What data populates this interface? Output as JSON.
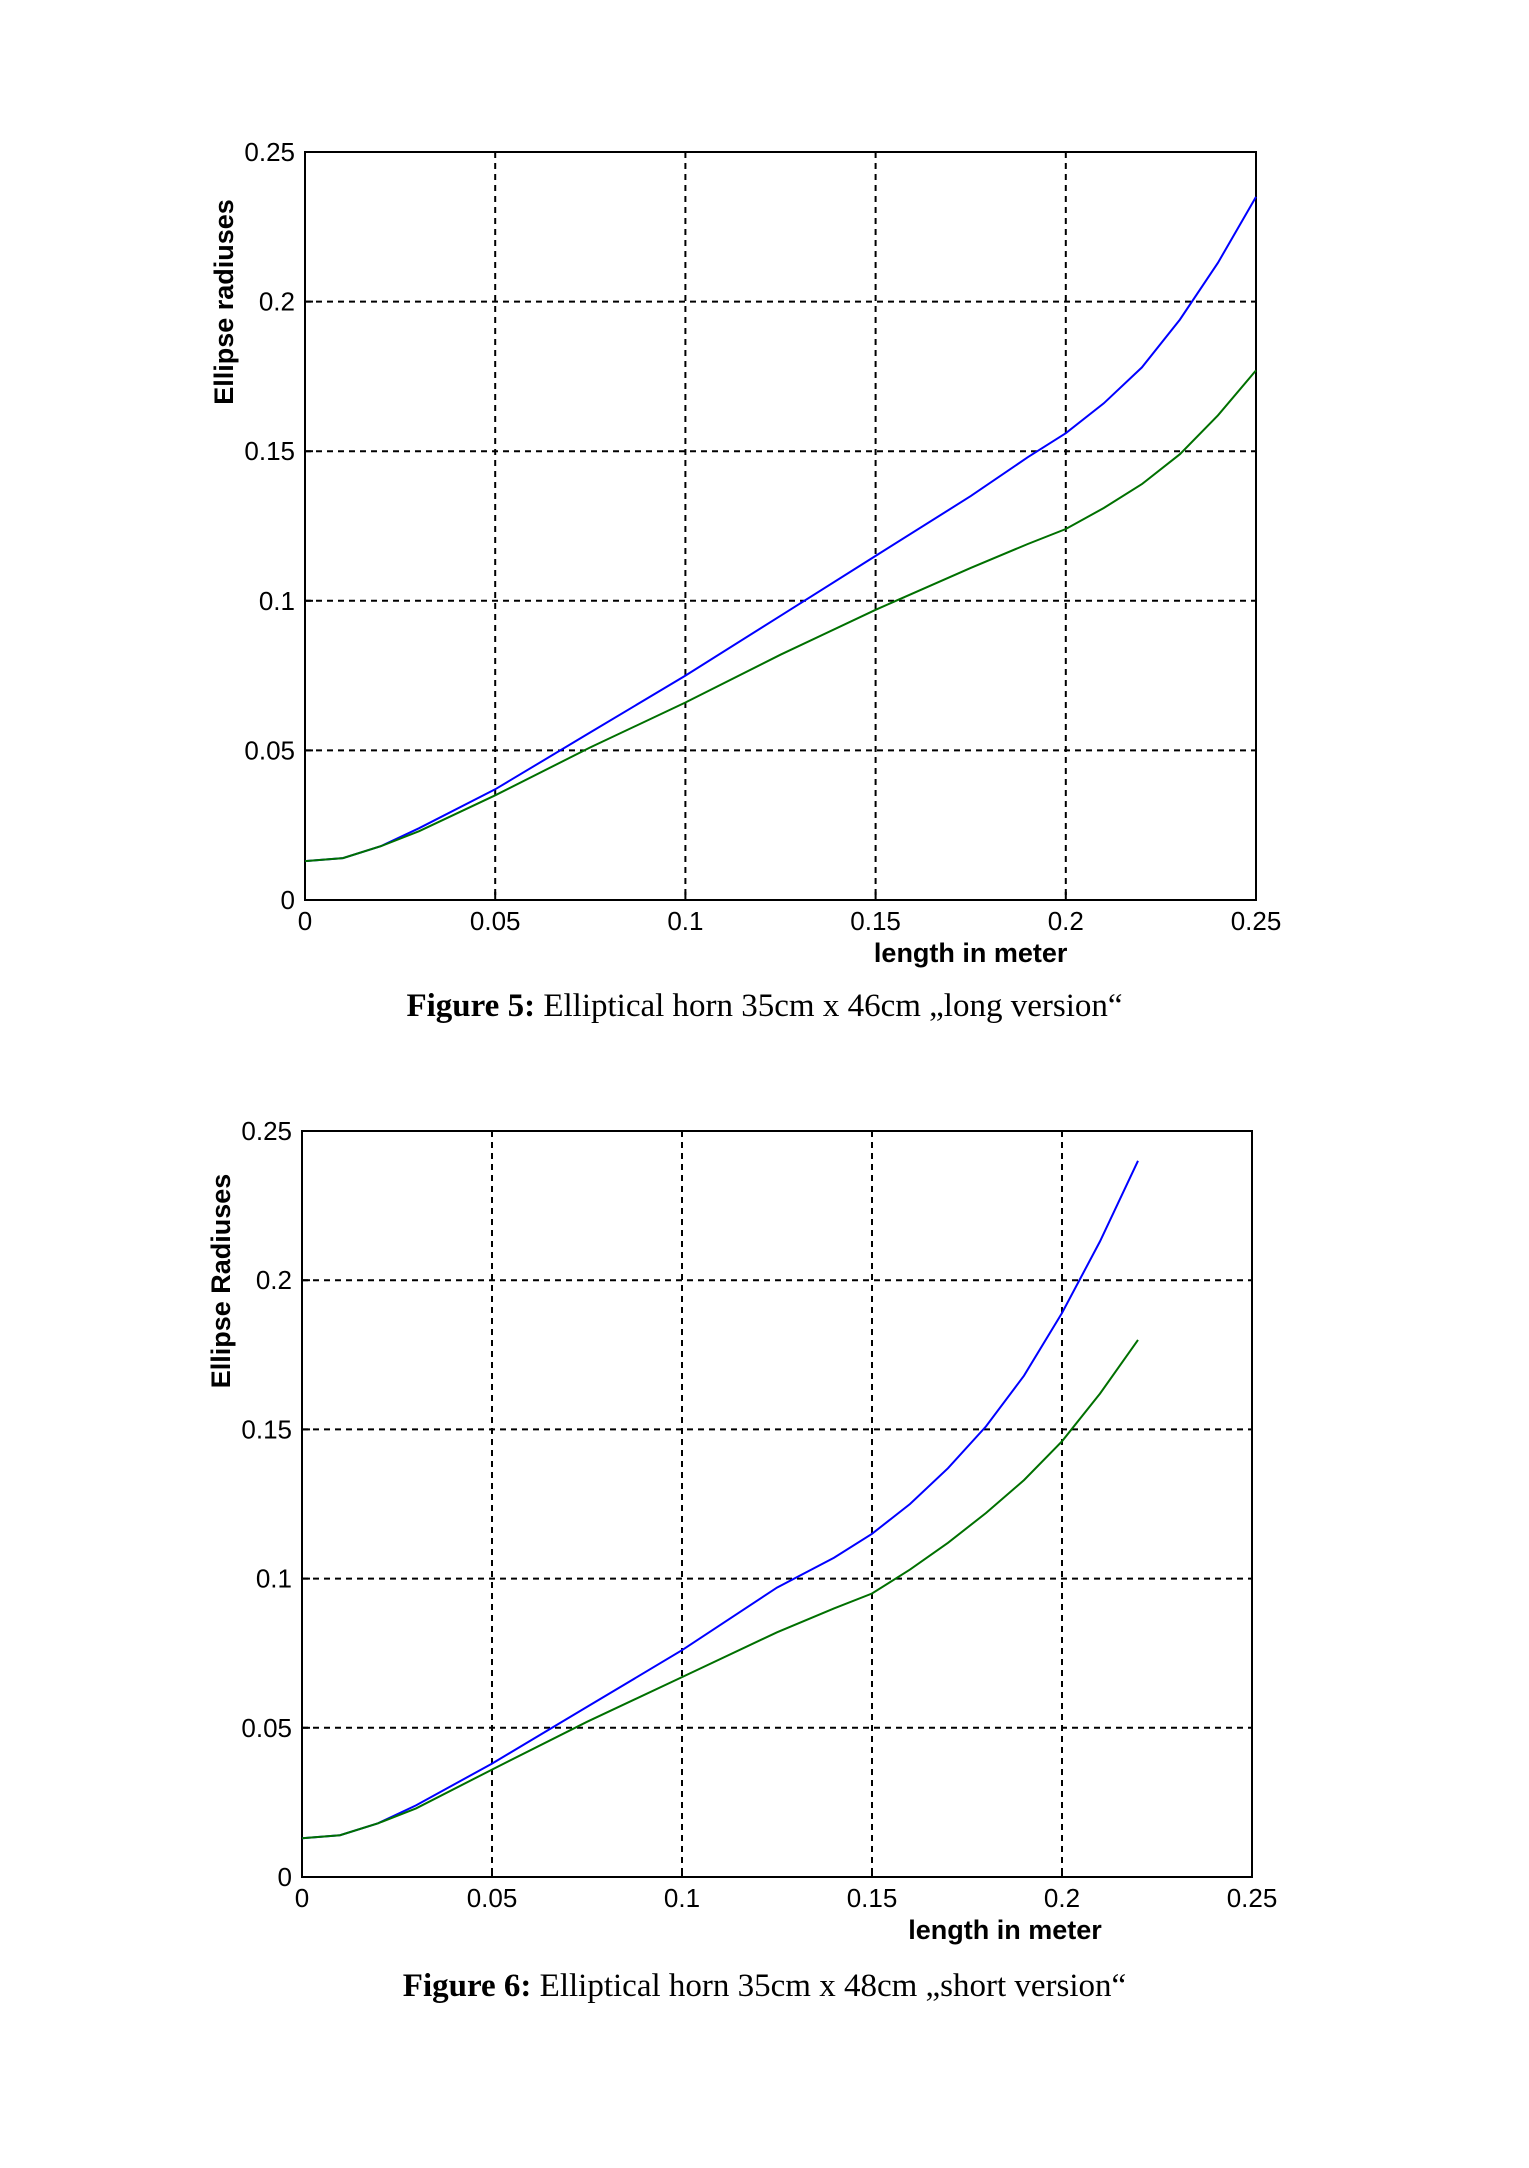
{
  "figures": [
    {
      "caption_label": "Figure 5:",
      "caption_text": " Elliptical horn 35cm x 46cm „long version“",
      "chart_data": {
        "type": "line",
        "xlabel": "length in meter",
        "ylabel": "Ellipse radiuses",
        "xlim": [
          0,
          0.25
        ],
        "ylim": [
          0,
          0.25
        ],
        "x_ticks": [
          "0",
          "0.05",
          "0.1",
          "0.15",
          "0.2",
          "0.25"
        ],
        "y_ticks": [
          "0",
          "0.05",
          "0.1",
          "0.15",
          "0.2",
          "0.25"
        ],
        "grid": true,
        "series": [
          {
            "color": "#0000ff",
            "x": [
              0,
              0.01,
              0.02,
              0.03,
              0.05,
              0.075,
              0.1,
              0.125,
              0.15,
              0.175,
              0.19,
              0.2,
              0.21,
              0.22,
              0.23,
              0.24,
              0.25
            ],
            "y": [
              0.013,
              0.014,
              0.018,
              0.024,
              0.037,
              0.056,
              0.075,
              0.095,
              0.115,
              0.135,
              0.148,
              0.156,
              0.166,
              0.178,
              0.194,
              0.213,
              0.235
            ]
          },
          {
            "color": "#007000",
            "x": [
              0,
              0.01,
              0.02,
              0.03,
              0.05,
              0.075,
              0.1,
              0.125,
              0.15,
              0.175,
              0.19,
              0.2,
              0.21,
              0.22,
              0.23,
              0.24,
              0.25
            ],
            "y": [
              0.013,
              0.014,
              0.018,
              0.023,
              0.035,
              0.051,
              0.066,
              0.082,
              0.097,
              0.111,
              0.119,
              0.124,
              0.131,
              0.139,
              0.149,
              0.162,
              0.177
            ]
          }
        ]
      }
    },
    {
      "caption_label": "Figure 6:",
      "caption_text": " Elliptical horn 35cm x 48cm „short version“",
      "chart_data": {
        "type": "line",
        "xlabel": "length in meter",
        "ylabel": "Ellipse Radiuses",
        "xlim": [
          0,
          0.25
        ],
        "ylim": [
          0,
          0.25
        ],
        "x_ticks": [
          "0",
          "0.05",
          "0.1",
          "0.15",
          "0.2",
          "0.25"
        ],
        "y_ticks": [
          "0",
          "0.05",
          "0.1",
          "0.15",
          "0.2",
          "0.25"
        ],
        "grid": true,
        "series": [
          {
            "color": "#0000ff",
            "x": [
              0,
              0.01,
              0.02,
              0.03,
              0.05,
              0.075,
              0.1,
              0.125,
              0.14,
              0.15,
              0.16,
              0.17,
              0.18,
              0.19,
              0.2,
              0.21,
              0.22
            ],
            "y": [
              0.013,
              0.014,
              0.018,
              0.024,
              0.038,
              0.057,
              0.076,
              0.097,
              0.107,
              0.115,
              0.125,
              0.137,
              0.151,
              0.168,
              0.189,
              0.213,
              0.24
            ]
          },
          {
            "color": "#007000",
            "x": [
              0,
              0.01,
              0.02,
              0.03,
              0.05,
              0.075,
              0.1,
              0.125,
              0.14,
              0.15,
              0.16,
              0.17,
              0.18,
              0.19,
              0.2,
              0.21,
              0.22
            ],
            "y": [
              0.013,
              0.014,
              0.018,
              0.023,
              0.036,
              0.052,
              0.067,
              0.082,
              0.09,
              0.095,
              0.103,
              0.112,
              0.122,
              0.133,
              0.146,
              0.162,
              0.18
            ]
          }
        ]
      }
    }
  ]
}
